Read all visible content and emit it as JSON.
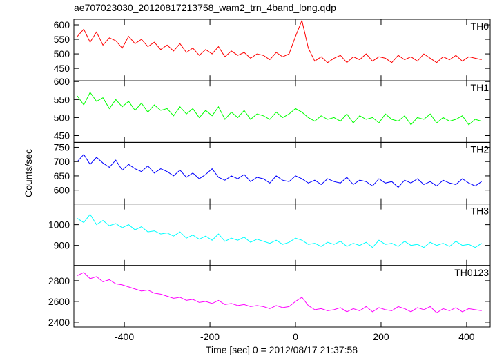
{
  "chart_data": {
    "type": "line",
    "title": "ae707023030_20120817213758_wam2_trn_4band_long.qdp",
    "xlabel": "Time [sec] 0 = 2012/08/17 21:37:58",
    "ylabel": "Counts/sec",
    "xlim": [
      -518,
      455
    ],
    "xticks": [
      -400,
      -200,
      0,
      200,
      400
    ],
    "x": [
      -510,
      -495,
      -480,
      -465,
      -450,
      -435,
      -420,
      -405,
      -390,
      -375,
      -360,
      -345,
      -330,
      -315,
      -300,
      -285,
      -270,
      -255,
      -240,
      -225,
      -210,
      -195,
      -180,
      -165,
      -150,
      -135,
      -120,
      -105,
      -90,
      -75,
      -60,
      -45,
      -30,
      -15,
      0,
      15,
      30,
      45,
      60,
      75,
      90,
      105,
      120,
      135,
      150,
      165,
      180,
      195,
      210,
      225,
      240,
      255,
      270,
      285,
      300,
      315,
      330,
      345,
      360,
      375,
      390,
      405,
      420,
      435
    ],
    "series": [
      {
        "name": "TH0",
        "color": "#ff0000",
        "ylim": [
          407,
          619
        ],
        "yticks": [
          450,
          500,
          550,
          600
        ],
        "values": [
          560,
          585,
          540,
          575,
          530,
          555,
          545,
          520,
          560,
          535,
          550,
          525,
          540,
          515,
          530,
          510,
          535,
          505,
          520,
          495,
          515,
          500,
          525,
          490,
          510,
          495,
          505,
          485,
          500,
          495,
          480,
          505,
          490,
          500,
          560,
          615,
          520,
          475,
          490,
          470,
          485,
          495,
          470,
          490,
          480,
          500,
          475,
          490,
          485,
          470,
          495,
          480,
          490,
          475,
          500,
          485,
          470,
          490,
          480,
          495,
          475,
          490,
          485,
          480
        ]
      },
      {
        "name": "TH1",
        "color": "#00ff00",
        "ylim": [
          431,
          602
        ],
        "yticks": [
          450,
          500,
          550,
          600
        ],
        "values": [
          560,
          535,
          570,
          545,
          555,
          525,
          550,
          530,
          545,
          520,
          540,
          515,
          535,
          520,
          525,
          505,
          530,
          510,
          525,
          500,
          520,
          505,
          530,
          495,
          515,
          500,
          520,
          495,
          510,
          505,
          495,
          515,
          500,
          510,
          525,
          515,
          500,
          490,
          505,
          495,
          500,
          490,
          510,
          485,
          505,
          495,
          500,
          485,
          510,
          495,
          490,
          505,
          480,
          500,
          495,
          510,
          485,
          500,
          490,
          495,
          505,
          480,
          495,
          490
        ]
      },
      {
        "name": "TH2",
        "color": "#0000ff",
        "ylim": [
          552,
          767
        ],
        "yticks": [
          600,
          650,
          700,
          750
        ],
        "values": [
          700,
          725,
          690,
          715,
          695,
          680,
          705,
          670,
          690,
          675,
          665,
          685,
          660,
          675,
          665,
          650,
          670,
          645,
          660,
          640,
          655,
          675,
          645,
          635,
          650,
          640,
          655,
          630,
          645,
          640,
          625,
          650,
          635,
          630,
          650,
          640,
          625,
          635,
          620,
          640,
          630,
          625,
          645,
          620,
          635,
          630,
          615,
          640,
          625,
          630,
          610,
          635,
          625,
          640,
          620,
          630,
          615,
          635,
          625,
          620,
          640,
          625,
          615,
          630
        ]
      },
      {
        "name": "TH3",
        "color": "#00ffff",
        "ylim": [
          803,
          1100
        ],
        "yticks": [
          900,
          1000
        ],
        "values": [
          1030,
          1010,
          1050,
          1000,
          1020,
          995,
          1005,
          985,
          1000,
          975,
          990,
          965,
          970,
          955,
          960,
          945,
          965,
          935,
          950,
          930,
          945,
          925,
          955,
          920,
          935,
          925,
          940,
          915,
          930,
          920,
          910,
          925,
          905,
          915,
          935,
          925,
          905,
          910,
          895,
          915,
          905,
          920,
          895,
          910,
          900,
          915,
          890,
          925,
          905,
          910,
          895,
          920,
          900,
          905,
          890,
          915,
          900,
          910,
          895,
          920,
          900,
          905,
          890,
          910
        ]
      },
      {
        "name": "TH0123",
        "color": "#ff00ff",
        "ylim": [
          2353,
          2947
        ],
        "yticks": [
          2400,
          2600,
          2800
        ],
        "values": [
          2850,
          2880,
          2820,
          2840,
          2790,
          2810,
          2770,
          2760,
          2740,
          2720,
          2700,
          2710,
          2680,
          2670,
          2650,
          2630,
          2640,
          2610,
          2620,
          2590,
          2600,
          2580,
          2610,
          2570,
          2580,
          2560,
          2570,
          2550,
          2560,
          2550,
          2530,
          2560,
          2540,
          2550,
          2600,
          2640,
          2560,
          2520,
          2530,
          2510,
          2520,
          2540,
          2500,
          2530,
          2510,
          2550,
          2500,
          2540,
          2520,
          2510,
          2550,
          2530,
          2500,
          2540,
          2520,
          2550,
          2490,
          2530,
          2510,
          2540,
          2500,
          2530,
          2520,
          2510
        ]
      }
    ]
  }
}
